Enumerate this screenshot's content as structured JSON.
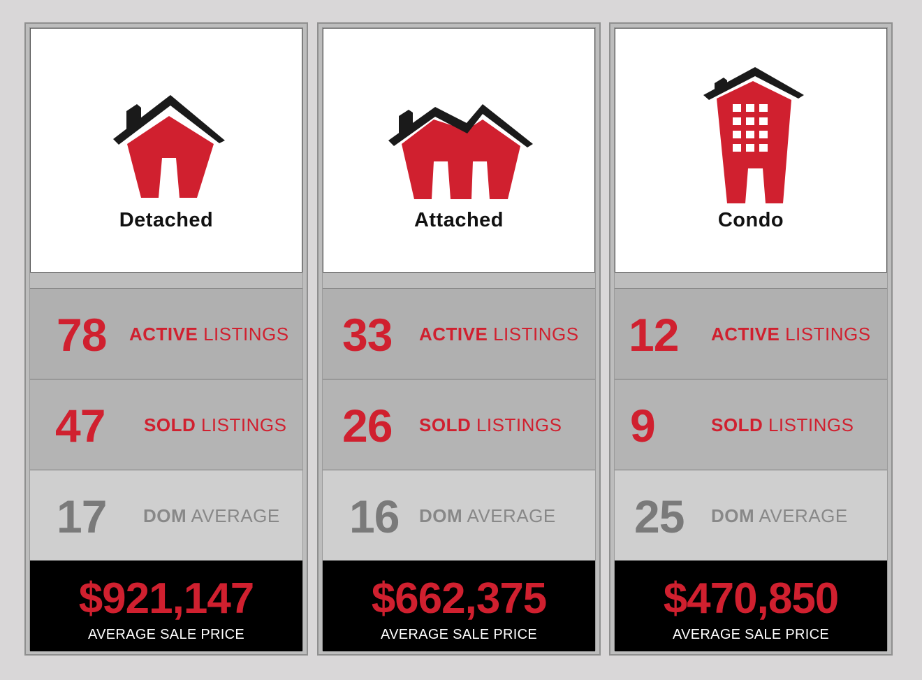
{
  "colors": {
    "accent": "#d0202f",
    "roof": "#1a1a1a",
    "background": "#d9d7d8"
  },
  "cards": [
    {
      "icon": "detached-house-icon",
      "type": "Detached",
      "active": {
        "value": "78",
        "bold": "ACTIVE",
        "rest": " LISTINGS"
      },
      "sold": {
        "value": "47",
        "bold": "SOLD",
        "rest": " LISTINGS"
      },
      "dom": {
        "value": "17",
        "bold": "DOM",
        "rest": " AVERAGE"
      },
      "price": {
        "value": "$921,147",
        "caption": "AVERAGE SALE PRICE"
      }
    },
    {
      "icon": "attached-house-icon",
      "type": "Attached",
      "active": {
        "value": "33",
        "bold": "ACTIVE",
        "rest": " LISTINGS"
      },
      "sold": {
        "value": "26",
        "bold": "SOLD",
        "rest": " LISTINGS"
      },
      "dom": {
        "value": "16",
        "bold": "DOM",
        "rest": " AVERAGE"
      },
      "price": {
        "value": "$662,375",
        "caption": "AVERAGE SALE PRICE"
      }
    },
    {
      "icon": "condo-building-icon",
      "type": "Condo",
      "active": {
        "value": "12",
        "bold": "ACTIVE",
        "rest": " LISTINGS"
      },
      "sold": {
        "value": "9",
        "bold": "SOLD",
        "rest": " LISTINGS"
      },
      "dom": {
        "value": "25",
        "bold": "DOM",
        "rest": " AVERAGE"
      },
      "price": {
        "value": "$470,850",
        "caption": "AVERAGE SALE PRICE"
      }
    }
  ]
}
